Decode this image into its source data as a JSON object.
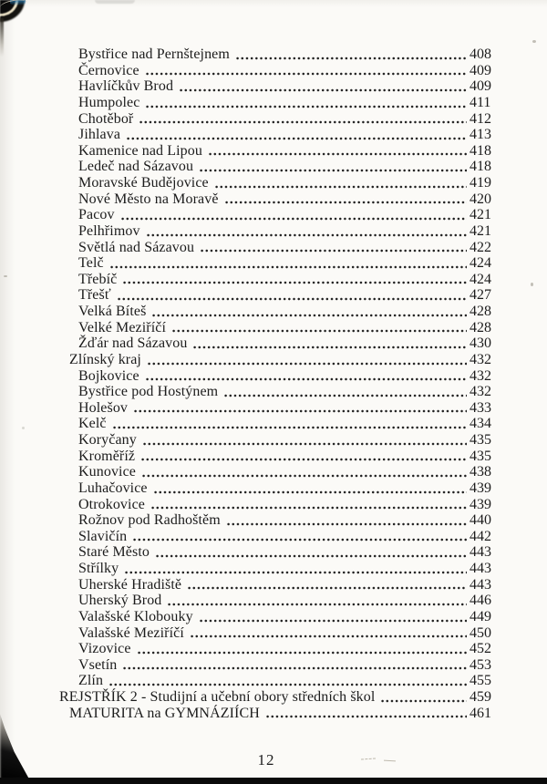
{
  "document": {
    "footer_page_number": "12",
    "ink_color": "#1c1c1c",
    "paper_color": "#fbfaf7"
  },
  "toc": {
    "entries": [
      {
        "label": "Bystřice nad Pernštejnem",
        "page": "408",
        "indent": 2
      },
      {
        "label": "Černovice",
        "page": "409",
        "indent": 2
      },
      {
        "label": "Havlíčkův Brod",
        "page": "409",
        "indent": 2
      },
      {
        "label": "Humpolec",
        "page": "411",
        "indent": 2
      },
      {
        "label": "Chotěboř",
        "page": "412",
        "indent": 2
      },
      {
        "label": "Jihlava",
        "page": "413",
        "indent": 2
      },
      {
        "label": "Kamenice nad Lipou",
        "page": "418",
        "indent": 2
      },
      {
        "label": "Ledeč nad Sázavou",
        "page": "418",
        "indent": 2
      },
      {
        "label": "Moravské Budějovice",
        "page": "419",
        "indent": 2
      },
      {
        "label": "Nové Město na Moravě",
        "page": "420",
        "indent": 2
      },
      {
        "label": "Pacov",
        "page": "421",
        "indent": 2
      },
      {
        "label": "Pelhřimov",
        "page": "421",
        "indent": 2
      },
      {
        "label": "Světlá nad Sázavou",
        "page": "422",
        "indent": 2
      },
      {
        "label": "Telč",
        "page": "424",
        "indent": 2
      },
      {
        "label": "Třebíč",
        "page": "424",
        "indent": 2
      },
      {
        "label": "Třešť",
        "page": "427",
        "indent": 2
      },
      {
        "label": "Velká Bíteš",
        "page": "428",
        "indent": 2
      },
      {
        "label": "Velké Meziříčí",
        "page": "428",
        "indent": 2
      },
      {
        "label": "Žďár nad Sázavou",
        "page": "430",
        "indent": 2
      },
      {
        "label": "Zlínský kraj",
        "page": "432",
        "indent": 1
      },
      {
        "label": "Bojkovice",
        "page": "432",
        "indent": 2
      },
      {
        "label": "Bystřice pod Hostýnem",
        "page": "432",
        "indent": 2
      },
      {
        "label": "Holešov",
        "page": "433",
        "indent": 2
      },
      {
        "label": "Kelč",
        "page": "434",
        "indent": 2
      },
      {
        "label": "Koryčany",
        "page": "435",
        "indent": 2
      },
      {
        "label": "Kroměříž",
        "page": "435",
        "indent": 2
      },
      {
        "label": "Kunovice",
        "page": "438",
        "indent": 2
      },
      {
        "label": "Luhačovice",
        "page": "439",
        "indent": 2
      },
      {
        "label": "Otrokovice",
        "page": "439",
        "indent": 2
      },
      {
        "label": "Rožnov pod Radhoštěm",
        "page": "440",
        "indent": 2
      },
      {
        "label": "Slavičín",
        "page": "442",
        "indent": 2
      },
      {
        "label": "Staré Město",
        "page": "443",
        "indent": 2
      },
      {
        "label": "Střílky",
        "page": "443",
        "indent": 2
      },
      {
        "label": "Uherské Hradiště",
        "page": "443",
        "indent": 2
      },
      {
        "label": "Uherský Brod",
        "page": "446",
        "indent": 2
      },
      {
        "label": "Valašské Klobouky",
        "page": "449",
        "indent": 2
      },
      {
        "label": "Valašské Meziříčí",
        "page": "450",
        "indent": 2
      },
      {
        "label": "Vizovice",
        "page": "452",
        "indent": 2
      },
      {
        "label": "Vsetín",
        "page": "453",
        "indent": 2
      },
      {
        "label": "Zlín",
        "page": "455",
        "indent": 2
      },
      {
        "label": "REJSTŘÍK 2 - Studijní a učební obory středních škol",
        "page": "459",
        "indent": 0
      },
      {
        "label": "MATURITA na GYMNÁZIÍCH",
        "page": "461",
        "indent": 1
      }
    ]
  }
}
